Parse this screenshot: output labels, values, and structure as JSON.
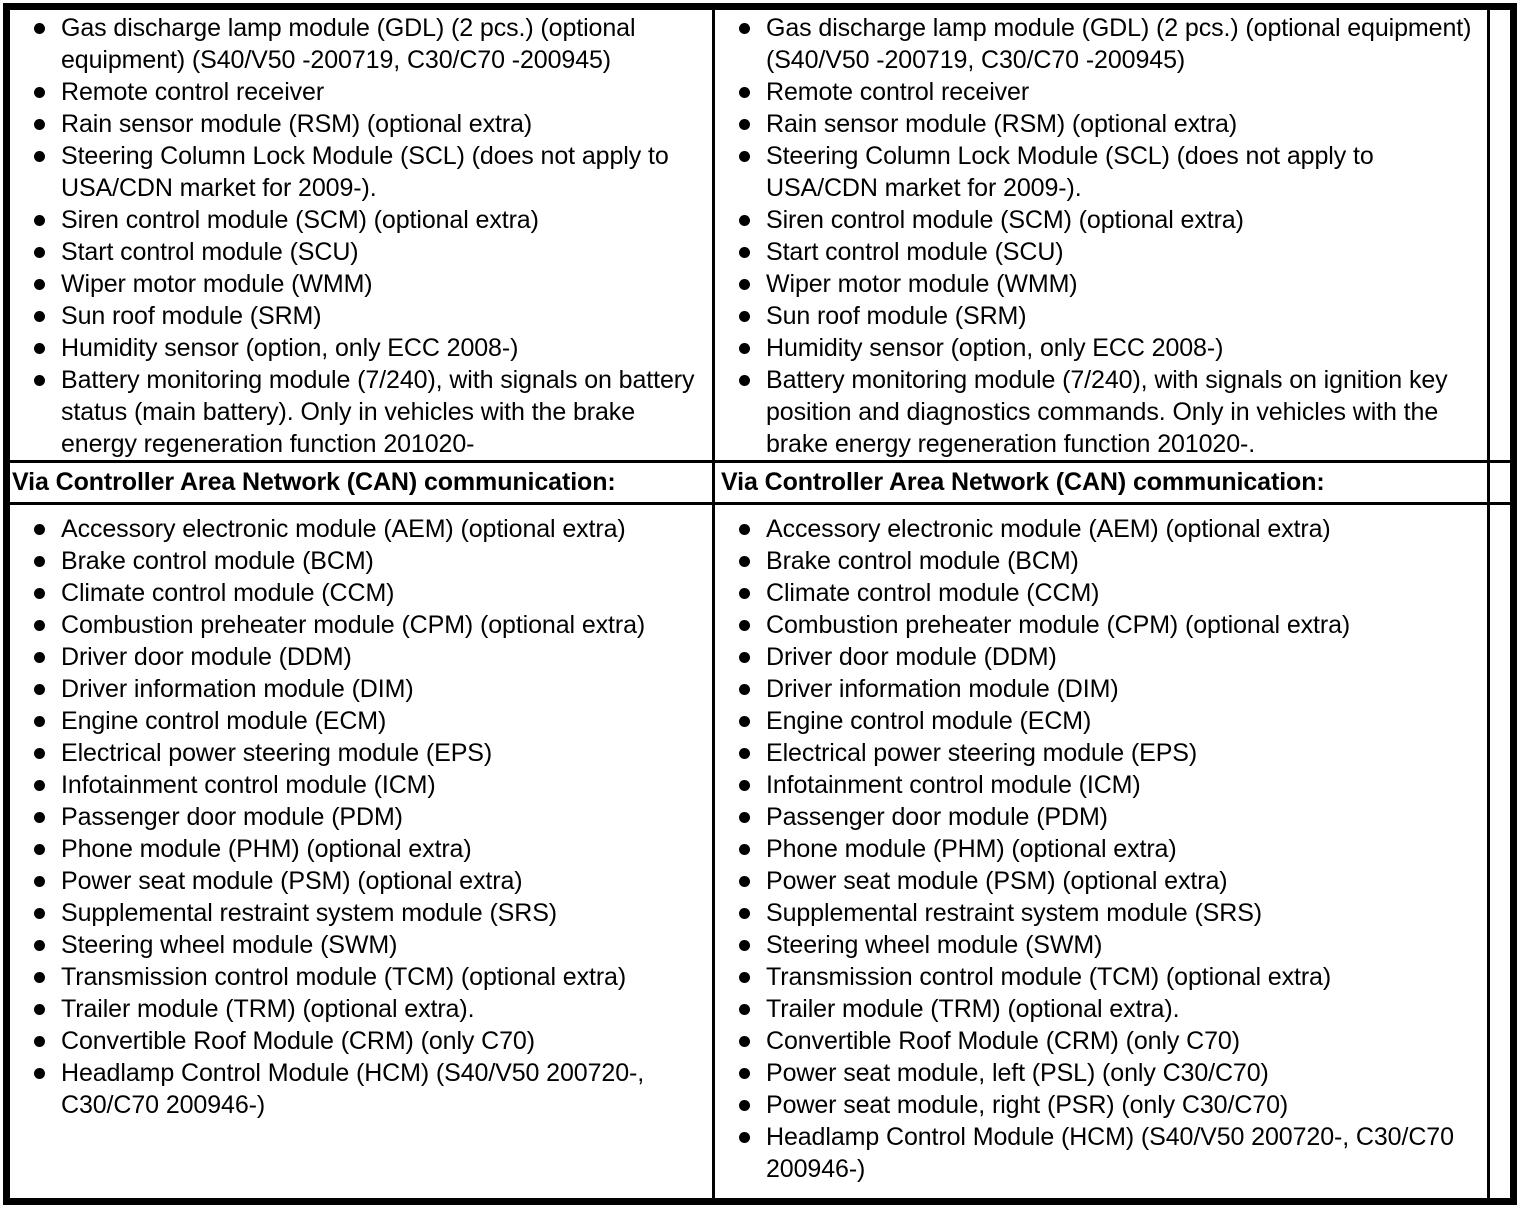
{
  "colors": {
    "background": "#ffffff",
    "text": "#000000",
    "border": "#000000"
  },
  "sections": {
    "direct": {
      "left_items": [
        "Gas discharge lamp module (GDL) (2 pcs.) (optional equipment) (S40/V50 -200719, C30/C70 -200945)",
        "Remote control receiver",
        "Rain sensor module (RSM) (optional extra)",
        "Steering Column Lock Module (SCL) (does not apply to USA/CDN market for 2009-).",
        "Siren control module (SCM) (optional extra)",
        "Start control module (SCU)",
        "Wiper motor module (WMM)",
        "Sun roof module (SRM)",
        "Humidity sensor (option, only ECC 2008-)",
        "Battery monitoring module (7/240), with signals on battery status (main battery). Only in vehicles with the brake energy regeneration function 201020-"
      ],
      "right_items": [
        "Gas discharge lamp module (GDL) (2 pcs.) (optional equipment) (S40/V50 -200719, C30/C70 -200945)",
        "Remote control receiver",
        "Rain sensor module (RSM) (optional extra)",
        "Steering Column Lock Module (SCL) (does not apply to USA/CDN market for 2009-).",
        "Siren control module (SCM) (optional extra)",
        "Start control module (SCU)",
        "Wiper motor module (WMM)",
        "Sun roof module (SRM)",
        "Humidity sensor (option, only ECC 2008-)",
        "Battery monitoring module (7/240), with signals on ignition key position and diagnostics commands. Only in vehicles with the brake energy regeneration function 201020-."
      ]
    },
    "can_header": {
      "left": "Via Controller Area Network (CAN) communication:",
      "right": "Via Controller Area Network (CAN) communication:"
    },
    "can": {
      "left_items": [
        "Accessory electronic module (AEM) (optional extra)",
        "Brake control module (BCM)",
        "Climate control module (CCM)",
        "Combustion preheater module (CPM) (optional extra)",
        "Driver door module (DDM)",
        "Driver information module (DIM)",
        "Engine control module (ECM)",
        "Electrical power steering module (EPS)",
        "Infotainment control module (ICM)",
        "Passenger door module (PDM)",
        "Phone module (PHM) (optional extra)",
        "Power seat module (PSM) (optional extra)",
        "Supplemental restraint system module (SRS)",
        "Steering wheel module (SWM)",
        "Transmission control module (TCM) (optional extra)",
        "Trailer module (TRM) (optional extra).",
        "Convertible Roof Module (CRM) (only C70)",
        "Headlamp Control Module (HCM) (S40/V50 200720-, C30/C70 200946-)"
      ],
      "right_items": [
        "Accessory electronic module (AEM) (optional extra)",
        "Brake control module (BCM)",
        "Climate control module (CCM)",
        "Combustion preheater module (CPM) (optional extra)",
        "Driver door module (DDM)",
        "Driver information module (DIM)",
        "Engine control module (ECM)",
        "Electrical power steering module (EPS)",
        "Infotainment control module (ICM)",
        "Passenger door module (PDM)",
        "Phone module (PHM) (optional extra)",
        "Power seat module (PSM) (optional extra)",
        "Supplemental restraint system module (SRS)",
        "Steering wheel module (SWM)",
        "Transmission control module (TCM) (optional extra)",
        "Trailer module (TRM) (optional extra).",
        "Convertible Roof Module (CRM) (only C70)",
        "Power seat module, left (PSL) (only C30/C70)",
        "Power seat module, right (PSR) (only C30/C70)",
        "Headlamp Control Module (HCM) (S40/V50 200720-, C30/C70 200946-)"
      ]
    }
  }
}
